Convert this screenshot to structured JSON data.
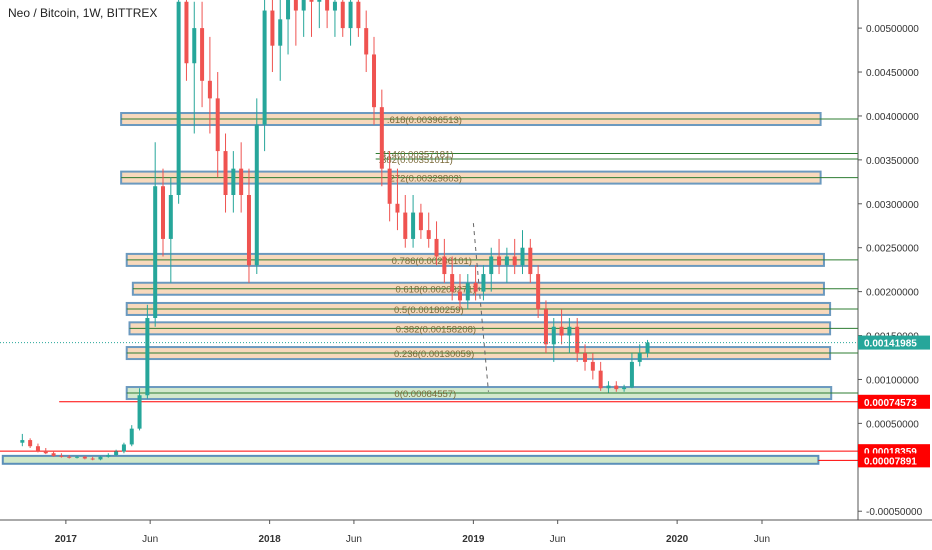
{
  "header": {
    "title": "Neo / Bitcoin, 1W, BITTREX"
  },
  "colors": {
    "up": "#26a69a",
    "down": "#ef5350",
    "fib_fill": "#f8d5b5",
    "fib_border": "#5b8fb9",
    "zone_fill": "#cfe7c8",
    "zone_border": "#5b8fb9",
    "price_tag": "#26a69a",
    "red_tag": "#ff0000",
    "level_line": "#2e7d32",
    "axis_text": "#333333"
  },
  "chart_data": {
    "type": "candlestick",
    "title": "Neo / Bitcoin, 1W, BITTREX",
    "ylim": [
      -0.0006,
      0.00532
    ],
    "y_ticks": [
      "0.00500000",
      "0.00450000",
      "0.00400000",
      "0.00350000",
      "0.00300000",
      "0.00250000",
      "0.00200000",
      "0.00150000",
      "0.00100000",
      "0.00050000",
      "-0.00050000"
    ],
    "y_tick_values": [
      0.005,
      0.0045,
      0.004,
      0.0035,
      0.003,
      0.0025,
      0.002,
      0.0015,
      0.001,
      0.0005,
      -0.0005
    ],
    "x_ticks": [
      "2017",
      "Jun",
      "2018",
      "Jun",
      "2019",
      "Jun",
      "2020",
      "Jun"
    ],
    "x_tick_dates": [
      "2017-01-01",
      "2017-06-01",
      "2018-01-01",
      "2018-06-01",
      "2019-01-01",
      "2019-06-01",
      "2020-01-01",
      "2020-06-01"
    ],
    "x_range": [
      "2016-09-05",
      "2020-11-20"
    ],
    "price_tags": [
      {
        "label": "0.00141985",
        "value": 0.00141985,
        "kind": "current"
      },
      {
        "label": "0.00074573",
        "value": 0.00074573,
        "kind": "red"
      },
      {
        "label": "0.00018359",
        "value": 0.00018359,
        "kind": "red"
      },
      {
        "label": "0.00007891",
        "value": 7.891e-05,
        "kind": "red"
      }
    ],
    "fib_levels": [
      {
        "label": ".618(0.00396513)",
        "value": 0.00396513,
        "start": "2017-04-10",
        "end": "2020-09-14",
        "boxed": true
      },
      {
        "label": ".414(0.00357181)",
        "value": 0.00357181,
        "start": "2018-07-10",
        "end": "2020-11-20",
        "boxed": false
      },
      {
        "label": ".382(0.00351011)",
        "value": 0.00351011,
        "start": "2018-07-10",
        "end": "2020-11-20",
        "boxed": false
      },
      {
        "label": ".272(0.00329803)",
        "value": 0.00329803,
        "start": "2017-04-10",
        "end": "2020-09-14",
        "boxed": true
      },
      {
        "label": "0.786(0.00236101)",
        "value": 0.00236101,
        "start": "2017-04-20",
        "end": "2020-09-20",
        "boxed": true
      },
      {
        "label": "0.618(0.00203271)",
        "value": 0.00203271,
        "start": "2017-05-01",
        "end": "2020-09-20",
        "boxed": true
      },
      {
        "label": "0.5(0.00180259)",
        "value": 0.00180259,
        "start": "2017-04-20",
        "end": "2020-10-01",
        "boxed": true
      },
      {
        "label": "0.382(0.00158208)",
        "value": 0.00158208,
        "start": "2017-04-25",
        "end": "2020-10-01",
        "boxed": true
      },
      {
        "label": "0.236(0.00130059)",
        "value": 0.00130059,
        "start": "2017-04-20",
        "end": "2020-10-01",
        "boxed": true
      },
      {
        "label": "0(0.00084557)",
        "value": 0.00084557,
        "start": "2017-04-20",
        "end": "2020-10-03",
        "boxed": true,
        "zone": true
      }
    ],
    "support_zones": [
      {
        "top": 0.00013,
        "bottom": 4e-05,
        "start": "2016-09-10",
        "end": "2020-09-10"
      }
    ],
    "red_lines": [
      {
        "value": 0.00074573,
        "start": "2016-12-20"
      },
      {
        "value": 0.00018359,
        "start": "2016-09-05"
      },
      {
        "value": 7.891e-05,
        "start": "2020-09-10"
      }
    ],
    "dashed_trend": [
      {
        "date": "2019-01-01",
        "value": 0.00278
      },
      {
        "date": "2019-01-28",
        "value": 0.00086
      }
    ],
    "candles": [
      {
        "d": "2016-10-15",
        "o": 0.00028,
        "h": 0.00038,
        "l": 0.00024,
        "c": 0.00031
      },
      {
        "d": "2016-10-29",
        "o": 0.00031,
        "h": 0.00033,
        "l": 0.00022,
        "c": 0.00024
      },
      {
        "d": "2016-11-12",
        "o": 0.00024,
        "h": 0.00027,
        "l": 0.00017,
        "c": 0.00019
      },
      {
        "d": "2016-11-26",
        "o": 0.00019,
        "h": 0.00022,
        "l": 0.00015,
        "c": 0.00016
      },
      {
        "d": "2016-12-10",
        "o": 0.00016,
        "h": 0.00019,
        "l": 0.00012,
        "c": 0.00013
      },
      {
        "d": "2016-12-24",
        "o": 0.00013,
        "h": 0.00016,
        "l": 0.00011,
        "c": 0.00012
      },
      {
        "d": "2017-01-07",
        "o": 0.00012,
        "h": 0.00014,
        "l": 0.0001,
        "c": 0.00011
      },
      {
        "d": "2017-01-21",
        "o": 0.00011,
        "h": 0.00013,
        "l": 0.0001,
        "c": 0.00012
      },
      {
        "d": "2017-02-04",
        "o": 0.00012,
        "h": 0.00013,
        "l": 9e-05,
        "c": 0.0001
      },
      {
        "d": "2017-02-18",
        "o": 0.0001,
        "h": 0.00012,
        "l": 8e-05,
        "c": 9e-05
      },
      {
        "d": "2017-03-04",
        "o": 9e-05,
        "h": 0.00013,
        "l": 8e-05,
        "c": 0.00012
      },
      {
        "d": "2017-03-18",
        "o": 0.00012,
        "h": 0.00016,
        "l": 0.00011,
        "c": 0.00014
      },
      {
        "d": "2017-04-01",
        "o": 0.00014,
        "h": 0.0002,
        "l": 0.00013,
        "c": 0.00018
      },
      {
        "d": "2017-04-15",
        "o": 0.00018,
        "h": 0.00028,
        "l": 0.00016,
        "c": 0.00026
      },
      {
        "d": "2017-04-29",
        "o": 0.00026,
        "h": 0.00048,
        "l": 0.00024,
        "c": 0.00044
      },
      {
        "d": "2017-05-13",
        "o": 0.00044,
        "h": 0.0009,
        "l": 0.00042,
        "c": 0.00082
      },
      {
        "d": "2017-05-27",
        "o": 0.00082,
        "h": 0.00185,
        "l": 0.00078,
        "c": 0.0017
      },
      {
        "d": "2017-06-10",
        "o": 0.0017,
        "h": 0.0037,
        "l": 0.0016,
        "c": 0.0032
      },
      {
        "d": "2017-06-24",
        "o": 0.0032,
        "h": 0.0034,
        "l": 0.0024,
        "c": 0.0026
      },
      {
        "d": "2017-07-08",
        "o": 0.0026,
        "h": 0.0033,
        "l": 0.0021,
        "c": 0.0031
      },
      {
        "d": "2017-07-22",
        "o": 0.0031,
        "h": 0.0055,
        "l": 0.003,
        "c": 0.0053
      },
      {
        "d": "2017-08-05",
        "o": 0.0053,
        "h": 0.0056,
        "l": 0.0044,
        "c": 0.0046
      },
      {
        "d": "2017-08-19",
        "o": 0.0046,
        "h": 0.0053,
        "l": 0.0038,
        "c": 0.005
      },
      {
        "d": "2017-09-02",
        "o": 0.005,
        "h": 0.0053,
        "l": 0.0041,
        "c": 0.0044
      },
      {
        "d": "2017-09-16",
        "o": 0.0044,
        "h": 0.0049,
        "l": 0.0038,
        "c": 0.0042
      },
      {
        "d": "2017-09-30",
        "o": 0.0042,
        "h": 0.0045,
        "l": 0.0033,
        "c": 0.0036
      },
      {
        "d": "2017-10-14",
        "o": 0.0036,
        "h": 0.0038,
        "l": 0.0029,
        "c": 0.0031
      },
      {
        "d": "2017-10-28",
        "o": 0.0031,
        "h": 0.0036,
        "l": 0.0029,
        "c": 0.0034
      },
      {
        "d": "2017-11-11",
        "o": 0.0034,
        "h": 0.0037,
        "l": 0.0029,
        "c": 0.0031
      },
      {
        "d": "2017-11-25",
        "o": 0.0031,
        "h": 0.0034,
        "l": 0.0021,
        "c": 0.0023
      },
      {
        "d": "2017-12-09",
        "o": 0.0023,
        "h": 0.0042,
        "l": 0.0022,
        "c": 0.0039
      },
      {
        "d": "2017-12-23",
        "o": 0.0039,
        "h": 0.0055,
        "l": 0.0036,
        "c": 0.0052
      },
      {
        "d": "2018-01-06",
        "o": 0.0052,
        "h": 0.0056,
        "l": 0.0045,
        "c": 0.0048
      },
      {
        "d": "2018-01-20",
        "o": 0.0048,
        "h": 0.0054,
        "l": 0.0044,
        "c": 0.0051
      },
      {
        "d": "2018-02-03",
        "o": 0.0051,
        "h": 0.0056,
        "l": 0.0047,
        "c": 0.0054
      },
      {
        "d": "2018-02-17",
        "o": 0.0054,
        "h": 0.0056,
        "l": 0.0048,
        "c": 0.0052
      },
      {
        "d": "2018-03-03",
        "o": 0.0052,
        "h": 0.0056,
        "l": 0.0049,
        "c": 0.0054
      },
      {
        "d": "2018-03-17",
        "o": 0.0054,
        "h": 0.0056,
        "l": 0.0049,
        "c": 0.0053
      },
      {
        "d": "2018-03-31",
        "o": 0.0053,
        "h": 0.0056,
        "l": 0.005,
        "c": 0.0055
      },
      {
        "d": "2018-04-14",
        "o": 0.0055,
        "h": 0.0056,
        "l": 0.005,
        "c": 0.0052
      },
      {
        "d": "2018-04-28",
        "o": 0.0052,
        "h": 0.0055,
        "l": 0.0049,
        "c": 0.0053
      },
      {
        "d": "2018-05-12",
        "o": 0.0053,
        "h": 0.0056,
        "l": 0.0049,
        "c": 0.005
      },
      {
        "d": "2018-05-26",
        "o": 0.005,
        "h": 0.0055,
        "l": 0.0048,
        "c": 0.0053
      },
      {
        "d": "2018-06-09",
        "o": 0.0053,
        "h": 0.0055,
        "l": 0.0049,
        "c": 0.005
      },
      {
        "d": "2018-06-23",
        "o": 0.005,
        "h": 0.0052,
        "l": 0.0045,
        "c": 0.0047
      },
      {
        "d": "2018-07-07",
        "o": 0.0047,
        "h": 0.0049,
        "l": 0.0039,
        "c": 0.0041
      },
      {
        "d": "2018-07-21",
        "o": 0.0041,
        "h": 0.0043,
        "l": 0.0032,
        "c": 0.0034
      },
      {
        "d": "2018-08-04",
        "o": 0.0034,
        "h": 0.0036,
        "l": 0.0028,
        "c": 0.003
      },
      {
        "d": "2018-08-18",
        "o": 0.003,
        "h": 0.0034,
        "l": 0.0027,
        "c": 0.0029
      },
      {
        "d": "2018-09-01",
        "o": 0.0029,
        "h": 0.0031,
        "l": 0.0025,
        "c": 0.0026
      },
      {
        "d": "2018-09-15",
        "o": 0.0026,
        "h": 0.0031,
        "l": 0.0025,
        "c": 0.0029
      },
      {
        "d": "2018-09-29",
        "o": 0.0029,
        "h": 0.003,
        "l": 0.0026,
        "c": 0.0027
      },
      {
        "d": "2018-10-13",
        "o": 0.0027,
        "h": 0.0029,
        "l": 0.0025,
        "c": 0.0026
      },
      {
        "d": "2018-10-27",
        "o": 0.0026,
        "h": 0.0028,
        "l": 0.0023,
        "c": 0.0024
      },
      {
        "d": "2018-11-10",
        "o": 0.0024,
        "h": 0.0026,
        "l": 0.0021,
        "c": 0.0022
      },
      {
        "d": "2018-11-24",
        "o": 0.0022,
        "h": 0.0024,
        "l": 0.0019,
        "c": 0.002
      },
      {
        "d": "2018-12-08",
        "o": 0.002,
        "h": 0.0022,
        "l": 0.0018,
        "c": 0.0019
      },
      {
        "d": "2018-12-22",
        "o": 0.0019,
        "h": 0.0022,
        "l": 0.0018,
        "c": 0.0021
      },
      {
        "d": "2019-01-05",
        "o": 0.0021,
        "h": 0.0023,
        "l": 0.0019,
        "c": 0.002
      },
      {
        "d": "2019-01-19",
        "o": 0.002,
        "h": 0.0023,
        "l": 0.0019,
        "c": 0.0022
      },
      {
        "d": "2019-02-02",
        "o": 0.0022,
        "h": 0.0025,
        "l": 0.002,
        "c": 0.0024
      },
      {
        "d": "2019-02-16",
        "o": 0.0024,
        "h": 0.0026,
        "l": 0.0022,
        "c": 0.0023
      },
      {
        "d": "2019-03-02",
        "o": 0.0023,
        "h": 0.0025,
        "l": 0.0021,
        "c": 0.0024
      },
      {
        "d": "2019-03-16",
        "o": 0.0024,
        "h": 0.0026,
        "l": 0.0022,
        "c": 0.0023
      },
      {
        "d": "2019-03-30",
        "o": 0.0023,
        "h": 0.0027,
        "l": 0.0022,
        "c": 0.0025
      },
      {
        "d": "2019-04-13",
        "o": 0.0025,
        "h": 0.0026,
        "l": 0.0021,
        "c": 0.0022
      },
      {
        "d": "2019-04-27",
        "o": 0.0022,
        "h": 0.0023,
        "l": 0.0017,
        "c": 0.0018
      },
      {
        "d": "2019-05-11",
        "o": 0.0018,
        "h": 0.0019,
        "l": 0.0013,
        "c": 0.0014
      },
      {
        "d": "2019-05-25",
        "o": 0.0014,
        "h": 0.0017,
        "l": 0.0012,
        "c": 0.0016
      },
      {
        "d": "2019-06-08",
        "o": 0.0016,
        "h": 0.0018,
        "l": 0.0014,
        "c": 0.0015
      },
      {
        "d": "2019-06-22",
        "o": 0.0015,
        "h": 0.0017,
        "l": 0.0013,
        "c": 0.0016
      },
      {
        "d": "2019-07-06",
        "o": 0.0016,
        "h": 0.0017,
        "l": 0.0012,
        "c": 0.0013
      },
      {
        "d": "2019-07-20",
        "o": 0.0013,
        "h": 0.0014,
        "l": 0.0011,
        "c": 0.0012
      },
      {
        "d": "2019-08-03",
        "o": 0.0012,
        "h": 0.0013,
        "l": 0.001,
        "c": 0.0011
      },
      {
        "d": "2019-08-17",
        "o": 0.0011,
        "h": 0.0012,
        "l": 0.00087,
        "c": 0.0009
      },
      {
        "d": "2019-08-31",
        "o": 0.0009,
        "h": 0.00098,
        "l": 0.00085,
        "c": 0.00093
      },
      {
        "d": "2019-09-14",
        "o": 0.00093,
        "h": 0.00098,
        "l": 0.00086,
        "c": 0.00089
      },
      {
        "d": "2019-09-28",
        "o": 0.00089,
        "h": 0.00094,
        "l": 0.00086,
        "c": 0.00091
      },
      {
        "d": "2019-10-12",
        "o": 0.00091,
        "h": 0.0013,
        "l": 0.0009,
        "c": 0.0012
      },
      {
        "d": "2019-10-26",
        "o": 0.0012,
        "h": 0.0014,
        "l": 0.00115,
        "c": 0.0013
      },
      {
        "d": "2019-11-09",
        "o": 0.0013,
        "h": 0.00145,
        "l": 0.00125,
        "c": 0.00142
      }
    ]
  }
}
